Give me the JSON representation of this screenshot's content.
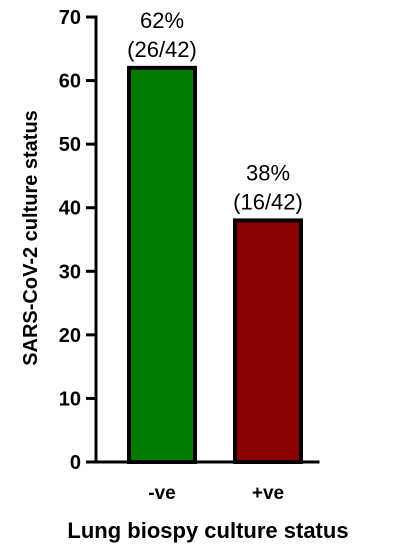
{
  "chart_data": {
    "type": "bar",
    "categories": [
      "-ve",
      "+ve"
    ],
    "values": [
      62,
      38
    ],
    "bar_colors": [
      "#007a00",
      "#8b0000"
    ],
    "data_labels": [
      {
        "line1": "62%",
        "line2": "(26/42)"
      },
      {
        "line1": "38%",
        "line2": "(16/42)"
      }
    ],
    "xlabel": "Lung biospy culture status",
    "ylabel": "SARS-CoV-2 culture status",
    "ylim": [
      0,
      70
    ],
    "yticks": [
      "0",
      "10",
      "20",
      "30",
      "40",
      "50",
      "60",
      "70"
    ],
    "grid": false,
    "legend": "none"
  }
}
